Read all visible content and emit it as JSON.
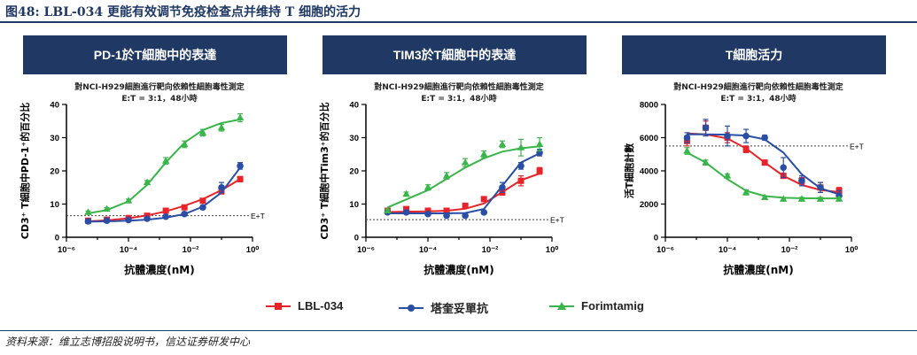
{
  "figure": {
    "title": "图48: LBL-034 更能有效调节免疫检查点并维持 T 细胞的活力",
    "source": "资料来源：维立志博招股说明书，信达证券研发中心"
  },
  "colors": {
    "LBL-034": "#e8242a",
    "塔奎妥單抗": "#2a4ea6",
    "Forimtamig": "#39b54a",
    "header_bg": "#1f3864"
  },
  "legend": [
    {
      "name": "LBL-034",
      "color": "#e8242a",
      "marker": "square"
    },
    {
      "name": "塔奎妥單抗",
      "color": "#2a4ea6",
      "marker": "circle"
    },
    {
      "name": "Forimtamig",
      "color": "#39b54a",
      "marker": "triangle"
    }
  ],
  "chart_data": [
    {
      "type": "scatter",
      "header": "PD-1於T細胞中的表達",
      "title": "對NCI-H929細胞進行靶向依賴性細胞毒性測定",
      "subtitle": "E:T = 3:1，48小時",
      "xlabel": "抗體濃度(nM)",
      "ylabel": "CD3⁺ T細胞中PD-1⁺的百分比",
      "xscale": "log",
      "xlim": [
        1e-06,
        1
      ],
      "ylim": [
        0,
        40
      ],
      "xticks": [
        "10⁻⁶",
        "10⁻⁴",
        "10⁻²",
        "10⁰"
      ],
      "yticks": [
        "0",
        "10",
        "20",
        "30",
        "40"
      ],
      "baseline": {
        "label": "E+T",
        "value": 6.5
      },
      "series": [
        {
          "name": "LBL-034",
          "x": [
            5e-06,
            2e-05,
            0.0001,
            0.0004,
            0.0016,
            0.0064,
            0.025,
            0.1,
            0.4
          ],
          "y": [
            5.0,
            5.3,
            5.8,
            6.5,
            8.0,
            9.0,
            11.0,
            14.0,
            17.5
          ],
          "err": [
            0.3,
            0.3,
            0.3,
            0.3,
            0.5,
            0.5,
            0.6,
            1.0,
            0.8
          ],
          "curve_y": [
            4.8,
            5.1,
            5.7,
            6.6,
            7.8,
            9.5,
            11.5,
            14.2,
            17.5
          ]
        },
        {
          "name": "塔奎妥單抗",
          "x": [
            5e-06,
            2e-05,
            0.0001,
            0.0004,
            0.0016,
            0.0064,
            0.025,
            0.1,
            0.4
          ],
          "y": [
            4.8,
            5.0,
            5.2,
            5.6,
            6.2,
            7.0,
            9.0,
            15.0,
            21.5
          ],
          "err": [
            0.3,
            0.3,
            0.3,
            0.3,
            0.3,
            0.5,
            0.6,
            1.5,
            1.0
          ],
          "curve_y": [
            4.7,
            4.8,
            5.0,
            5.3,
            5.9,
            7.0,
            9.2,
            13.5,
            21.0
          ]
        },
        {
          "name": "Forimtamig",
          "x": [
            5e-06,
            2e-05,
            0.0001,
            0.0004,
            0.0016,
            0.0064,
            0.025,
            0.1,
            0.4
          ],
          "y": [
            7.5,
            8.5,
            11.0,
            16.5,
            23.0,
            28.0,
            31.5,
            33.0,
            36.0
          ],
          "err": [
            0.4,
            0.4,
            0.5,
            0.6,
            1.0,
            1.0,
            1.0,
            1.0,
            1.2
          ],
          "curve_y": [
            7.2,
            8.2,
            10.8,
            15.8,
            22.5,
            28.5,
            32.3,
            34.4,
            35.5
          ]
        }
      ]
    },
    {
      "type": "scatter",
      "header": "TIM3於T細胞中的表達",
      "title": "對NCI-H929細胞進行靶向依賴性細胞毒性測定",
      "subtitle": "E:T = 3:1，48小時",
      "xlabel": "抗體濃度(nM)",
      "ylabel": "CD3⁺ T細胞中Tim3⁺的百分比",
      "xscale": "log",
      "xlim": [
        1e-06,
        1
      ],
      "ylim": [
        0,
        40
      ],
      "xticks": [
        "10⁻⁶",
        "10⁻⁴",
        "10⁻²",
        "10⁰"
      ],
      "yticks": [
        "0",
        "10",
        "20",
        "30",
        "40"
      ],
      "baseline": {
        "label": "E+T",
        "value": 5.3
      },
      "series": [
        {
          "name": "LBL-034",
          "x": [
            5e-06,
            2e-05,
            0.0001,
            0.0004,
            0.0016,
            0.0064,
            0.025,
            0.1,
            0.4
          ],
          "y": [
            8.0,
            8.5,
            8.0,
            8.0,
            9.5,
            11.5,
            13.5,
            17.0,
            20.0
          ],
          "err": [
            0.5,
            0.5,
            0.5,
            0.5,
            0.5,
            0.5,
            0.8,
            1.5,
            1.0
          ],
          "curve_y": [
            7.6,
            7.7,
            7.8,
            8.0,
            8.6,
            10.2,
            13.6,
            17.2,
            19.2
          ]
        },
        {
          "name": "塔奎妥單抗",
          "x": [
            5e-06,
            2e-05,
            0.0001,
            0.0004,
            0.0016,
            0.0064,
            0.025,
            0.1,
            0.4
          ],
          "y": [
            7.5,
            7.5,
            7.0,
            6.5,
            6.5,
            7.5,
            15.0,
            21.5,
            25.5
          ],
          "err": [
            0.5,
            0.5,
            0.5,
            0.5,
            0.5,
            0.5,
            1.5,
            1.0,
            1.0
          ],
          "curve_y": [
            7.2,
            7.2,
            7.2,
            7.2,
            7.3,
            8.5,
            15.5,
            22.5,
            25.3
          ]
        },
        {
          "name": "Forimtamig",
          "x": [
            5e-06,
            2e-05,
            0.0001,
            0.0004,
            0.0016,
            0.0064,
            0.025,
            0.1,
            0.4
          ],
          "y": [
            8.0,
            13.0,
            15.0,
            18.5,
            22.5,
            25.0,
            28.0,
            27.0,
            28.0
          ],
          "err": [
            0.5,
            0.6,
            0.8,
            1.0,
            1.2,
            1.0,
            1.0,
            2.5,
            2.0
          ],
          "curve_y": [
            9.0,
            11.4,
            14.2,
            17.6,
            21.0,
            23.8,
            25.8,
            26.8,
            27.4
          ]
        }
      ]
    },
    {
      "type": "scatter",
      "header": "T細胞活力",
      "title": "對NCI-H929細胞進行靶向依賴性細胞毒性測定",
      "subtitle": "E:T = 3:1，48小時",
      "xlabel": "抗體濃度(nM)",
      "ylabel": "活T細胞計數",
      "xscale": "log",
      "xlim": [
        1e-06,
        1
      ],
      "ylim": [
        0,
        8000
      ],
      "xticks": [
        "10⁻⁶",
        "10⁻⁴",
        "10⁻²",
        "10⁰"
      ],
      "yticks": [
        "0",
        "2000",
        "4000",
        "6000",
        "8000"
      ],
      "baseline": {
        "label": "E+T",
        "value": 5500
      },
      "series": [
        {
          "name": "LBL-034",
          "x": [
            5e-06,
            2e-05,
            0.0001,
            0.0004,
            0.0016,
            0.0064,
            0.025,
            0.1,
            0.4
          ],
          "y": [
            5800,
            6600,
            6000,
            5300,
            4500,
            3700,
            3400,
            3000,
            2800
          ],
          "err": [
            300,
            400,
            300,
            200,
            150,
            150,
            200,
            300,
            200
          ],
          "curve_y": [
            6250,
            6200,
            5950,
            5350,
            4500,
            3700,
            3150,
            2850,
            2720
          ]
        },
        {
          "name": "塔奎妥單抗",
          "x": [
            5e-06,
            2e-05,
            0.0001,
            0.0004,
            0.0016,
            0.0064,
            0.025,
            0.1,
            0.4
          ],
          "y": [
            6000,
            6600,
            6100,
            6100,
            6000,
            4200,
            3400,
            3000,
            2500
          ],
          "err": [
            300,
            500,
            600,
            400,
            150,
            600,
            300,
            300,
            300
          ],
          "curve_y": [
            6200,
            6200,
            6180,
            6130,
            5900,
            5100,
            3800,
            2950,
            2580
          ]
        },
        {
          "name": "Forimtamig",
          "x": [
            5e-06,
            2e-05,
            0.0001,
            0.0004,
            0.0016,
            0.0064,
            0.025,
            0.1,
            0.4
          ],
          "y": [
            5200,
            4500,
            3700,
            2700,
            2400,
            2300,
            2300,
            2300,
            2300
          ],
          "err": [
            200,
            150,
            100,
            150,
            100,
            100,
            100,
            100,
            100
          ],
          "curve_y": [
            5100,
            4500,
            3500,
            2800,
            2480,
            2380,
            2350,
            2340,
            2340
          ]
        }
      ]
    }
  ]
}
